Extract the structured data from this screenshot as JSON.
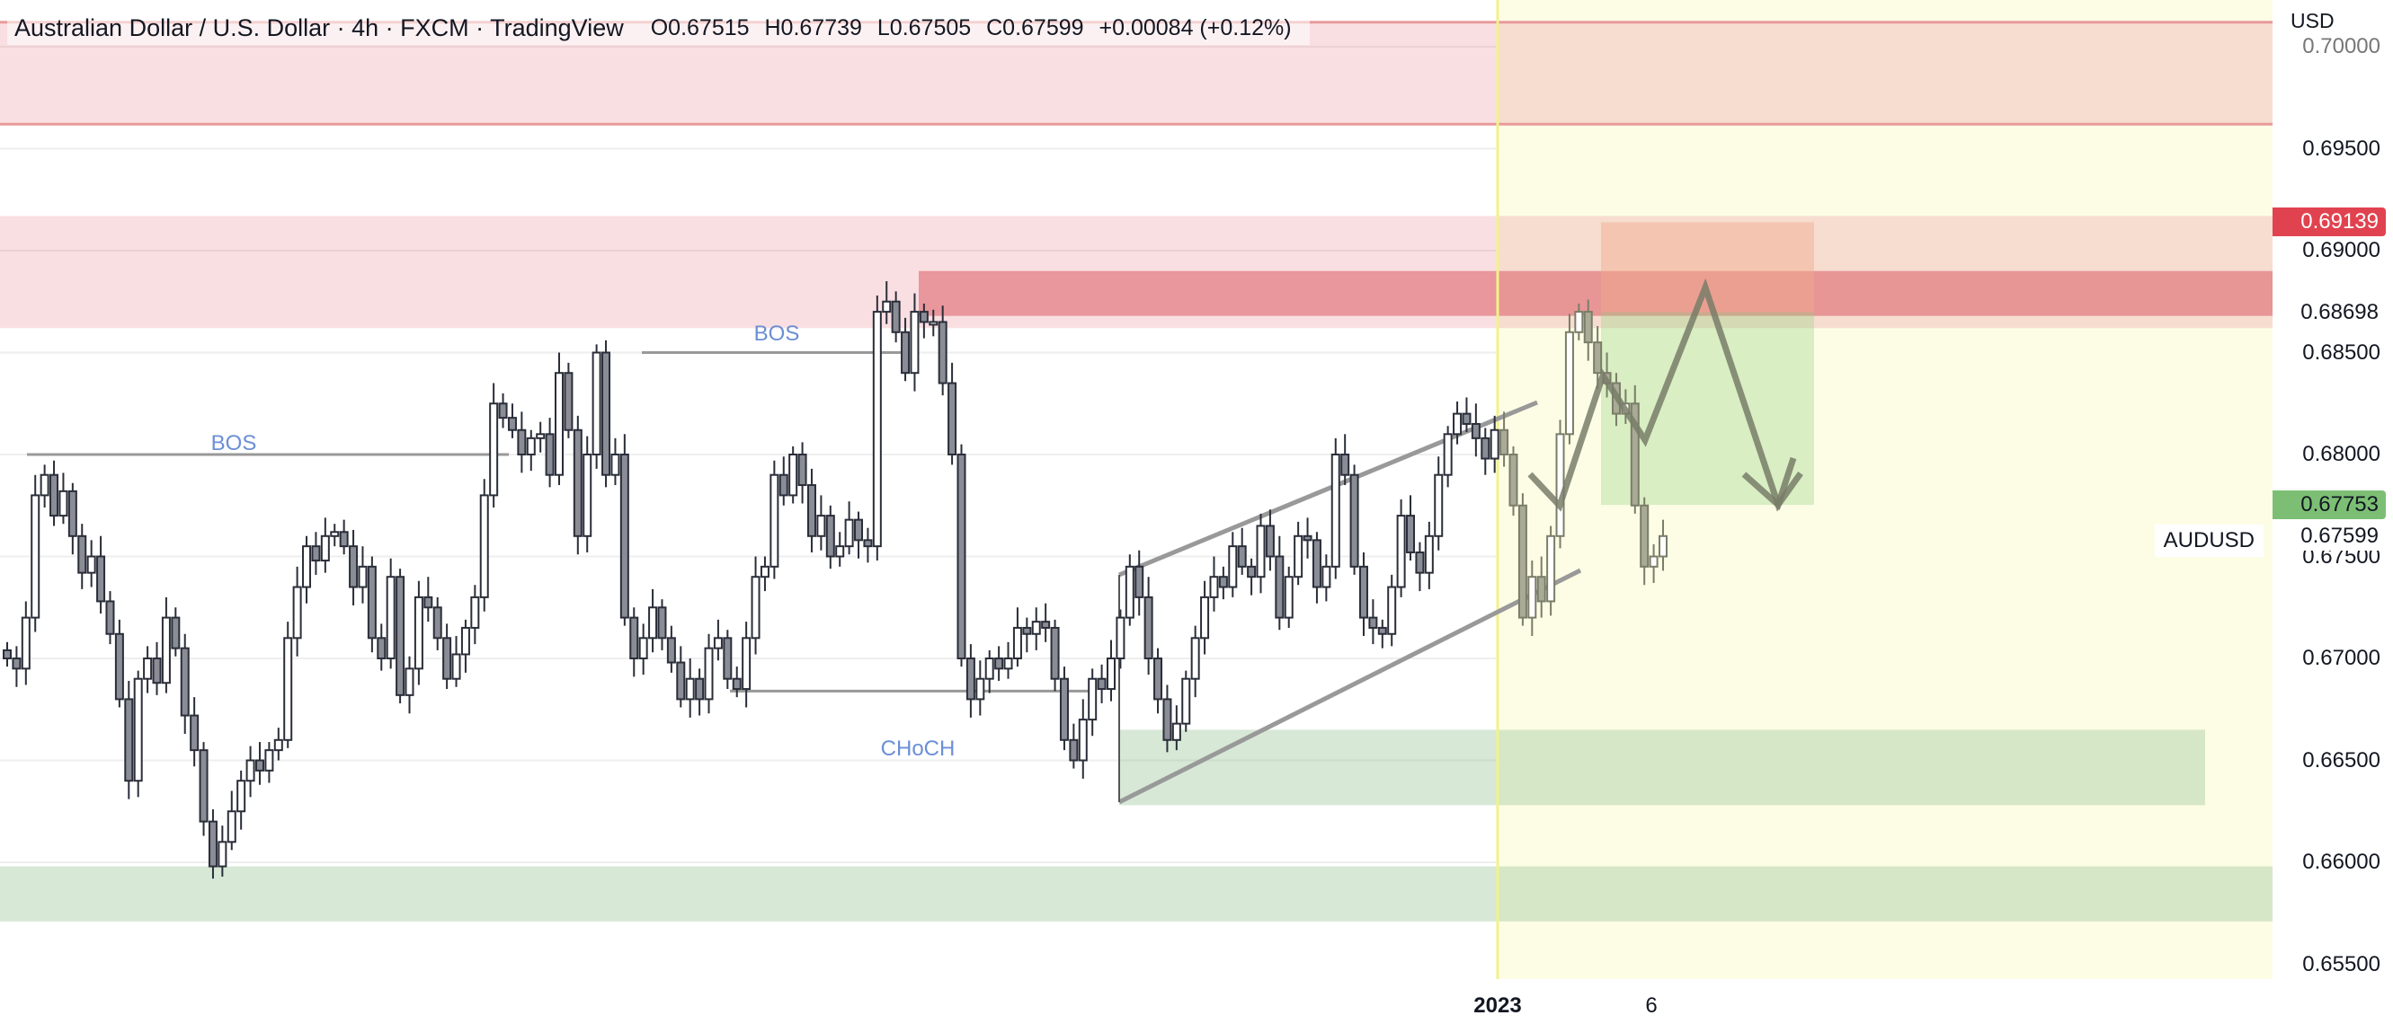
{
  "header": {
    "title": "Australian Dollar / U.S. Dollar · 4h · FXCM · TradingView",
    "ohlc": {
      "open": "O0.67515",
      "high": "H0.67739",
      "low": "L0.67505",
      "close": "C0.67599",
      "change": "+0.00084 (+0.12%)"
    }
  },
  "price_axis": {
    "currency": "USD",
    "ticks": [
      "0.70000",
      "0.69500",
      "0.69000",
      "0.68500",
      "0.68000",
      "0.67500",
      "0.67000",
      "0.66500",
      "0.66000",
      "0.65500"
    ],
    "tags": [
      {
        "value": "0.69139",
        "price": 0.69139,
        "bg": "#e0434f",
        "color": "#ffffff"
      },
      {
        "value": "0.68698",
        "price": 0.68698,
        "bg": "#ffffff",
        "color": "#131722"
      },
      {
        "value": "0.67753",
        "price": 0.67753,
        "bg": "#7cbf74",
        "color": "#131722"
      },
      {
        "value": "0.67599",
        "price": 0.67599,
        "bg": "#ffffff",
        "color": "#131722"
      }
    ],
    "symbol_label": "AUDUSD"
  },
  "time_axis": {
    "labels": [
      {
        "text": "2023",
        "x": 1666,
        "bold": true
      },
      {
        "text": "6",
        "x": 1837,
        "bold": false
      }
    ]
  },
  "annotations": {
    "bos_1": "BOS",
    "bos_2": "BOS",
    "choch": "CHoCH"
  },
  "colors": {
    "bull_fill": "#ffffff",
    "bear_fill": "#8a8d96",
    "candle_stroke": "#2a2e39",
    "supply_zone": "#f5dde0",
    "supply_core": "#e8949a",
    "demand_zone": "#d8e8d6",
    "forecast_bg": "#fdfde6",
    "line_gray": "#999999",
    "label_blue": "#6b8fd6"
  },
  "chart_data": {
    "type": "candlestick",
    "title": "Australian Dollar / U.S. Dollar · 4h · FXCM · TradingView",
    "symbol": "AUDUSD",
    "timeframe": "4h",
    "ylabel": "USD",
    "ylim": [
      0.6535,
      0.7015
    ],
    "grid": true,
    "x_ticks": [
      "2023",
      "6"
    ],
    "last": {
      "open": 0.67515,
      "high": 0.67739,
      "low": 0.67505,
      "close": 0.67599,
      "change": 0.00084,
      "change_pct": 0.12
    },
    "candles_close_path": [
      0.67,
      0.6695,
      0.672,
      0.678,
      0.679,
      0.677,
      0.6782,
      0.676,
      0.6742,
      0.675,
      0.6728,
      0.6712,
      0.668,
      0.664,
      0.669,
      0.67,
      0.6688,
      0.672,
      0.6705,
      0.6672,
      0.6655,
      0.662,
      0.6598,
      0.661,
      0.6625,
      0.664,
      0.665,
      0.6645,
      0.6655,
      0.666,
      0.671,
      0.6735,
      0.6755,
      0.6748,
      0.676,
      0.6762,
      0.6755,
      0.6735,
      0.6745,
      0.671,
      0.67,
      0.674,
      0.6682,
      0.6695,
      0.673,
      0.6725,
      0.671,
      0.669,
      0.6702,
      0.6715,
      0.673,
      0.678,
      0.6825,
      0.6818,
      0.6812,
      0.68,
      0.6808,
      0.681,
      0.679,
      0.684,
      0.6812,
      0.676,
      0.68,
      0.685,
      0.679,
      0.68,
      0.672,
      0.67,
      0.671,
      0.6725,
      0.671,
      0.6698,
      0.668,
      0.669,
      0.668,
      0.6705,
      0.671,
      0.669,
      0.6685,
      0.671,
      0.674,
      0.6745,
      0.679,
      0.678,
      0.68,
      0.6785,
      0.676,
      0.677,
      0.675,
      0.6755,
      0.6768,
      0.6758,
      0.6755,
      0.687,
      0.6875,
      0.686,
      0.684,
      0.687,
      0.6865,
      0.6865,
      0.6835,
      0.68,
      0.67,
      0.668,
      0.669,
      0.67,
      0.6695,
      0.67,
      0.6715,
      0.6712,
      0.6718,
      0.6715,
      0.669,
      0.666,
      0.665,
      0.667,
      0.669,
      0.6685,
      0.67,
      0.672,
      0.6745,
      0.673,
      0.67,
      0.668,
      0.666,
      0.6668,
      0.669,
      0.671,
      0.673,
      0.674,
      0.6735,
      0.6755,
      0.6745,
      0.674,
      0.6765,
      0.675,
      0.672,
      0.674,
      0.676,
      0.6758,
      0.6735,
      0.6745,
      0.68,
      0.679,
      0.6745,
      0.672,
      0.6715,
      0.6712,
      0.6735,
      0.677,
      0.6752,
      0.6742,
      0.676,
      0.679,
      0.681,
      0.682,
      0.6815,
      0.6808,
      0.6798,
      0.6812,
      0.68,
      0.6775,
      0.672,
      0.674,
      0.6728,
      0.676,
      0.681,
      0.686,
      0.687,
      0.6855,
      0.684,
      0.6835,
      0.682,
      0.6825,
      0.6775,
      0.6745,
      0.675,
      0.676
    ],
    "zones": [
      {
        "name": "upper-supply",
        "from": 0.7012,
        "to": 0.6962,
        "kind": "supply"
      },
      {
        "name": "main-supply",
        "from": 0.6917,
        "to": 0.6862,
        "kind": "supply"
      },
      {
        "name": "supply-core",
        "from": 0.689,
        "to": 0.6868,
        "kind": "supply-core"
      },
      {
        "name": "demand-mid",
        "from": 0.6665,
        "to": 0.6628,
        "kind": "demand"
      },
      {
        "name": "demand-low",
        "from": 0.6598,
        "to": 0.6571,
        "kind": "demand"
      }
    ],
    "structure_lines": [
      {
        "label": "BOS",
        "price": 0.68
      },
      {
        "label": "BOS",
        "price": 0.6849
      },
      {
        "label": "CHoCH",
        "price": 0.668
      }
    ],
    "trade_box": {
      "entry": 0.68698,
      "stop": 0.69139,
      "target": 0.67753
    }
  }
}
